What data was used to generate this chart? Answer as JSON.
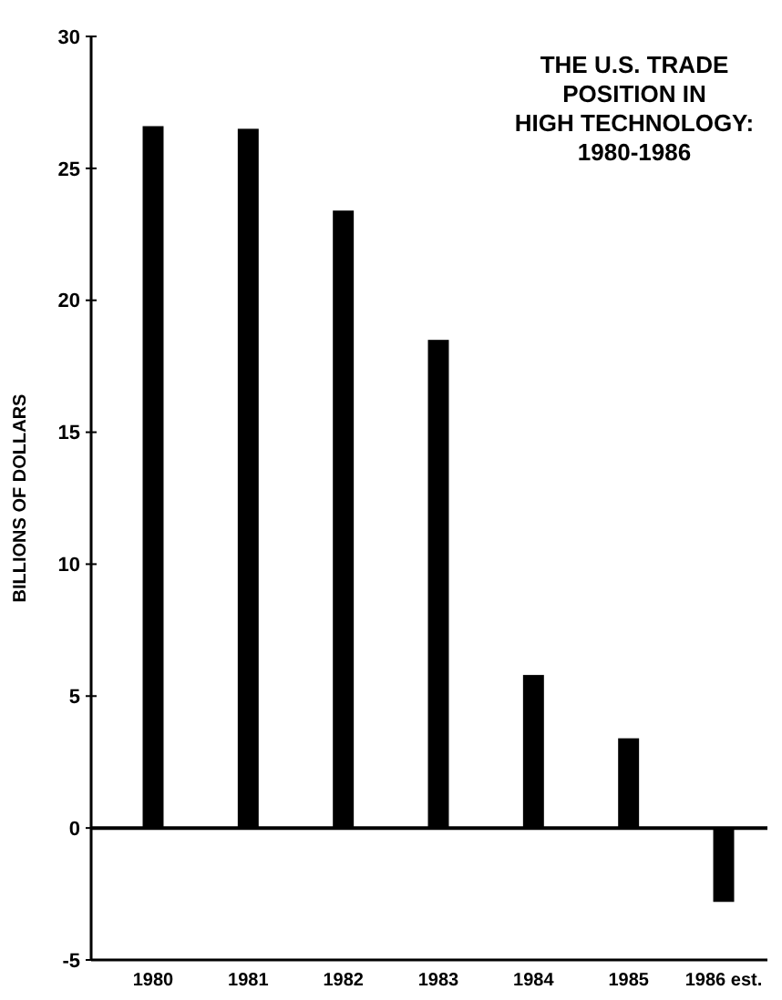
{
  "chart_data": {
    "type": "bar",
    "title": "THE U.S. TRADE\nPOSITION IN\nHIGH TECHNOLOGY:\n1980-1986",
    "ylabel": "BILLIONS OF DOLLARS",
    "categories": [
      "1980",
      "1981",
      "1982",
      "1983",
      "1984",
      "1985",
      "1986 est."
    ],
    "values": [
      26.6,
      26.5,
      23.4,
      18.5,
      5.8,
      3.4,
      -2.8
    ],
    "color": "#000000",
    "ylim": [
      -5,
      30
    ],
    "yticks": [
      -5,
      0,
      5,
      10,
      15,
      20,
      25,
      30
    ],
    "grid": false,
    "ref_lines": [
      {
        "axis": "y",
        "value": 0
      }
    ]
  }
}
